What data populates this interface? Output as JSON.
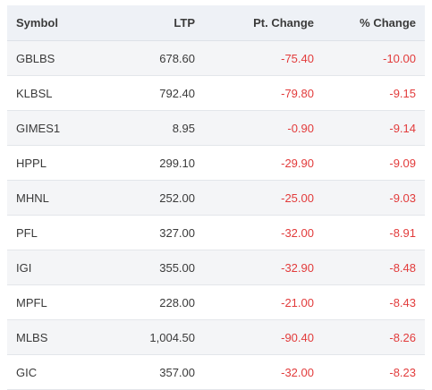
{
  "table": {
    "headers": {
      "symbol": "Symbol",
      "ltp": "LTP",
      "pt_change": "Pt. Change",
      "pct_change": "% Change"
    },
    "rows": [
      {
        "symbol": "GBLBS",
        "ltp": "678.60",
        "pt_change": "-75.40",
        "pct_change": "-10.00"
      },
      {
        "symbol": "KLBSL",
        "ltp": "792.40",
        "pt_change": "-79.80",
        "pct_change": "-9.15"
      },
      {
        "symbol": "GIMES1",
        "ltp": "8.95",
        "pt_change": "-0.90",
        "pct_change": "-9.14"
      },
      {
        "symbol": "HPPL",
        "ltp": "299.10",
        "pt_change": "-29.90",
        "pct_change": "-9.09"
      },
      {
        "symbol": "MHNL",
        "ltp": "252.00",
        "pt_change": "-25.00",
        "pct_change": "-9.03"
      },
      {
        "symbol": "PFL",
        "ltp": "327.00",
        "pt_change": "-32.00",
        "pct_change": "-8.91"
      },
      {
        "symbol": "IGI",
        "ltp": "355.00",
        "pt_change": "-32.90",
        "pct_change": "-8.48"
      },
      {
        "symbol": "MPFL",
        "ltp": "228.00",
        "pt_change": "-21.00",
        "pct_change": "-8.43"
      },
      {
        "symbol": "MLBS",
        "ltp": "1,004.50",
        "pt_change": "-90.40",
        "pct_change": "-8.26"
      },
      {
        "symbol": "GIC",
        "ltp": "357.00",
        "pt_change": "-32.00",
        "pct_change": "-8.23"
      }
    ]
  },
  "colors": {
    "header_bg": "#eef1f6",
    "row_alt_bg": "#f4f5f7",
    "negative": "#e23b3b",
    "text": "#3a3a3a"
  }
}
